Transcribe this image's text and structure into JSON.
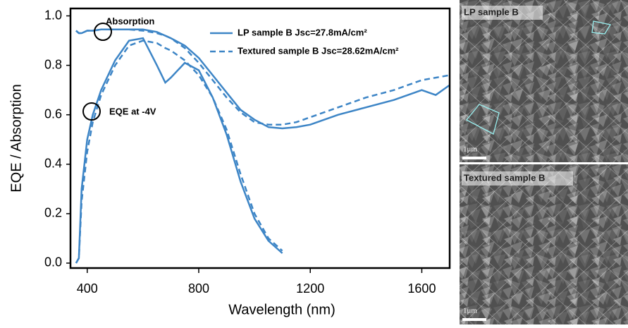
{
  "chart_data": {
    "type": "line",
    "xlabel": "Wavelength (nm)",
    "ylabel": "EQE / Absorption",
    "x": [
      360,
      370,
      380,
      400,
      420,
      450,
      500,
      550,
      600,
      650,
      680,
      700,
      750,
      800,
      850,
      900,
      950,
      1000,
      1050,
      1100,
      1150,
      1200,
      1250,
      1300,
      1400,
      1500,
      1550,
      1600,
      1650,
      1700
    ],
    "series": [
      {
        "name": "LP sample B Jsc=27.8mA/cm²",
        "color": "#3d85c6",
        "dash": false,
        "absorption": [
          0.94,
          0.93,
          0.93,
          0.94,
          0.94,
          0.945,
          0.945,
          0.945,
          0.945,
          0.935,
          0.92,
          0.91,
          0.88,
          0.83,
          0.76,
          0.69,
          0.62,
          0.58,
          0.55,
          0.545,
          0.55,
          0.56,
          0.58,
          0.6,
          0.63,
          0.66,
          0.68,
          0.7,
          0.68,
          0.72
        ],
        "eqe": [
          0.0,
          0.02,
          0.3,
          0.5,
          0.6,
          0.7,
          0.82,
          0.9,
          0.91,
          0.8,
          0.73,
          0.75,
          0.81,
          0.78,
          0.67,
          0.52,
          0.33,
          0.18,
          0.09,
          0.04,
          null,
          null,
          null,
          null,
          null,
          null,
          null,
          null,
          null,
          null
        ]
      },
      {
        "name": "Textured sample B Jsc=28.62mA/cm²",
        "color": "#3d85c6",
        "dash": true,
        "absorption": [
          0.94,
          0.93,
          0.93,
          0.94,
          0.94,
          0.945,
          0.945,
          0.945,
          0.94,
          0.93,
          0.92,
          0.91,
          0.87,
          0.81,
          0.74,
          0.67,
          0.61,
          0.57,
          0.56,
          0.56,
          0.57,
          0.59,
          0.61,
          0.63,
          0.67,
          0.7,
          0.72,
          0.74,
          0.75,
          0.76
        ],
        "eqe": [
          0.0,
          0.02,
          0.25,
          0.45,
          0.57,
          0.68,
          0.8,
          0.88,
          0.9,
          0.89,
          0.87,
          0.86,
          0.82,
          0.76,
          0.67,
          0.54,
          0.36,
          0.2,
          0.1,
          0.05,
          null,
          null,
          null,
          null,
          null,
          null,
          null,
          null,
          null,
          null
        ]
      }
    ],
    "annotations": [
      "Absorption",
      "EQE at -4V"
    ],
    "xlim": [
      340,
      1700
    ],
    "ylim": [
      -0.02,
      1.03
    ],
    "xticks": [
      400,
      800,
      1200,
      1600
    ],
    "yticks": [
      {
        "value": 0,
        "label": "0.0"
      },
      0.2,
      0.4,
      0.6,
      0.8,
      {
        "value": 1,
        "label": "1.0"
      }
    ]
  },
  "images": [
    {
      "label": "LP sample B",
      "scale": "1μm"
    },
    {
      "label": "Textured sample B",
      "scale": "1μm"
    }
  ]
}
